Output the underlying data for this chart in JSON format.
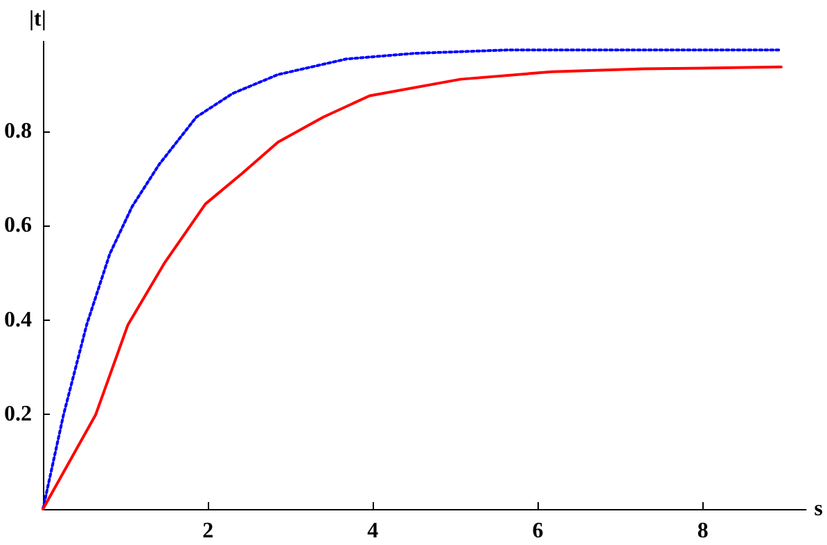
{
  "chart_data": {
    "type": "line",
    "xlabel": "s",
    "ylabel": "|t|",
    "xlim": [
      0,
      9.25
    ],
    "ylim": [
      0,
      0.99
    ],
    "xticks": [
      2,
      4,
      6,
      8
    ],
    "yticks": [
      0.2,
      0.4,
      0.6,
      0.8
    ],
    "grid": false,
    "marker": "none",
    "series": [
      {
        "color": "#0000ff",
        "line_style": "dotted",
        "x": [
          0,
          0.25,
          0.53,
          0.81,
          1.08,
          1.41,
          1.86,
          2.3,
          2.85,
          3.68,
          4.51,
          5.62,
          7,
          8.95
        ],
        "values": [
          0,
          0.2,
          0.39,
          0.54,
          0.64,
          0.73,
          0.83,
          0.88,
          0.92,
          0.953,
          0.965,
          0.972,
          0.972,
          0.972
        ]
      },
      {
        "color": "#ff0000",
        "line_style": "solid",
        "x": [
          0,
          0.64,
          1.03,
          1.47,
          1.97,
          2.41,
          2.85,
          3.4,
          3.96,
          5.06,
          6.17,
          7.28,
          8.95
        ],
        "values": [
          0,
          0.2,
          0.39,
          0.52,
          0.646,
          0.71,
          0.777,
          0.83,
          0.875,
          0.91,
          0.926,
          0.932,
          0.936
        ]
      }
    ]
  }
}
